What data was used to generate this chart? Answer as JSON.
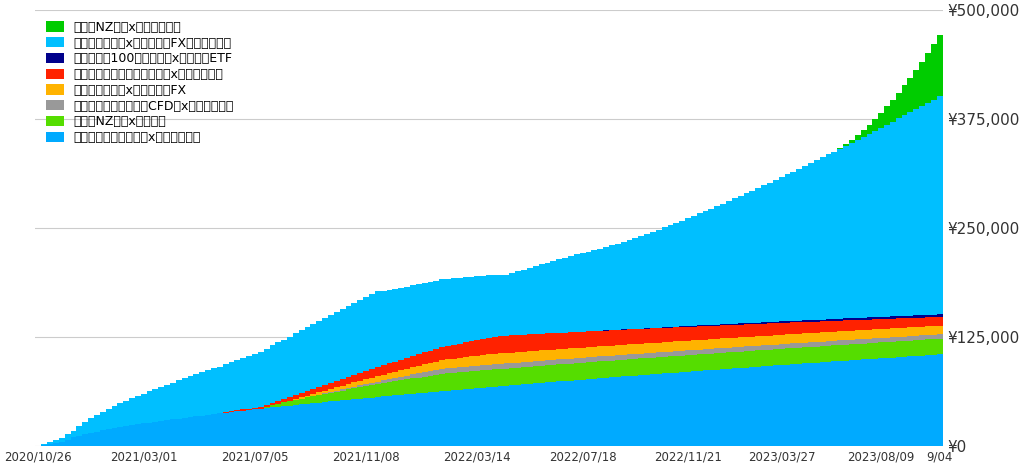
{
  "legend_labels": [
    "豪ドルNZドルx手動リピート",
    "ユーロポンド売xトライオーFXハイブリット",
    "ナスダック100トリプル買xトラオーETF",
    "カナダドル円買・ユーロ円売x手動トラリピ",
    "ユーロポンド売xトライオーFX",
    "ビットコイン暗号資産CFD買x手動トラリピ",
    "豪ドルNZドルxトラリピ",
    "メキシコペソ円両建てx手動トラリピ"
  ],
  "legend_colors": [
    "#00CC00",
    "#00BFFF",
    "#00008B",
    "#FF2200",
    "#FFB300",
    "#999999",
    "#55DD00",
    "#00AAFF"
  ],
  "stack_order_colors": [
    "#00AAFF",
    "#55DD00",
    "#999999",
    "#FFB300",
    "#FF2200",
    "#00008B",
    "#00BFFF",
    "#00CC00"
  ],
  "ylim": [
    0,
    500000
  ],
  "yticks": [
    0,
    125000,
    250000,
    375000,
    500000
  ],
  "xtick_labels": [
    "2020/10/26",
    "2021/03/01",
    "2021/07/05",
    "2021/11/08",
    "2022/03/14",
    "2022/07/18",
    "2022/11/21",
    "2023/03/27",
    "2023/08/09",
    "9/04"
  ],
  "bg_color": "#ffffff",
  "n_bars": 155
}
